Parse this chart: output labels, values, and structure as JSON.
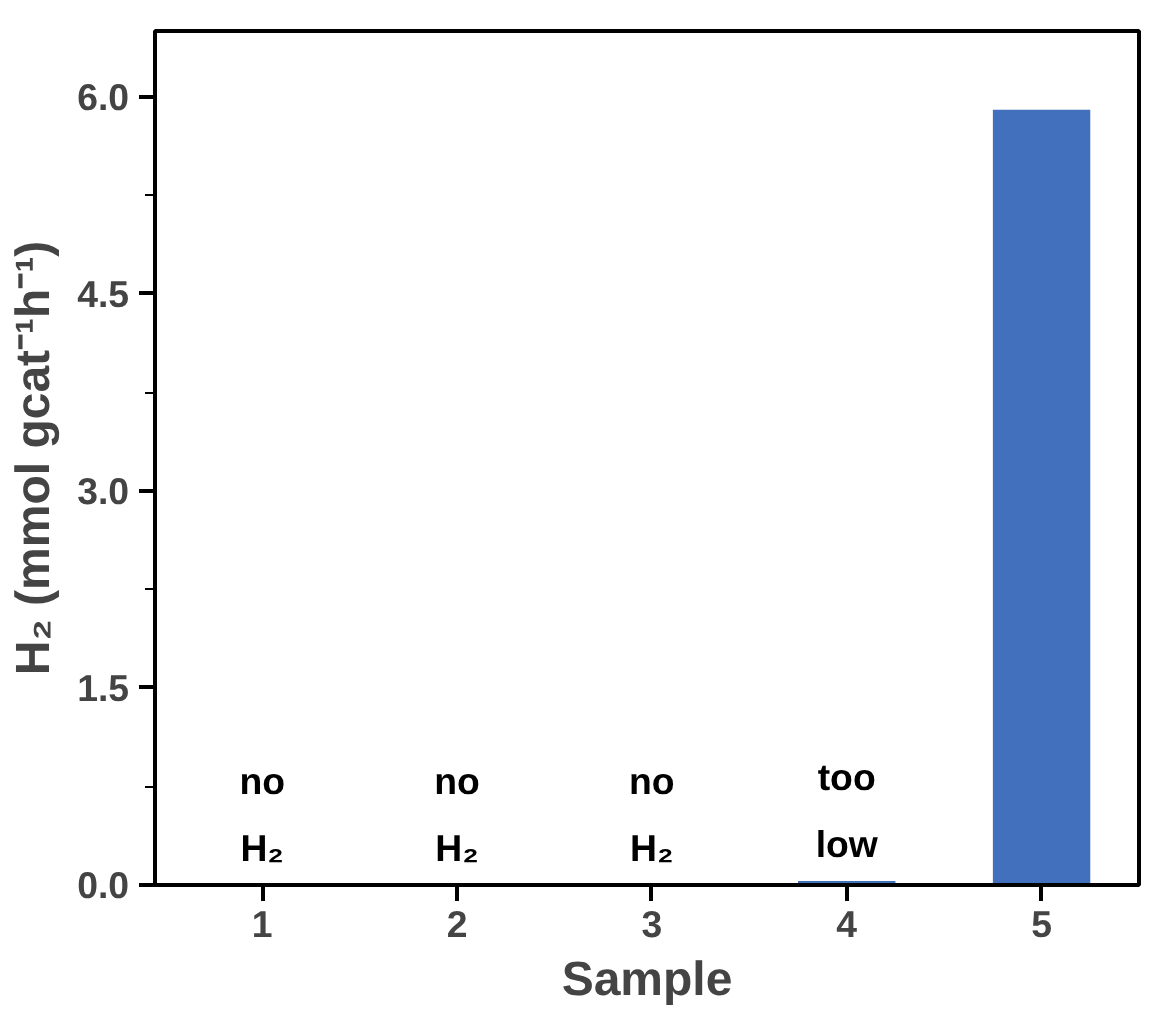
{
  "chart_data": {
    "type": "bar",
    "xlabel": "Sample",
    "ylabel": "H₂ (mmol gcat⁻¹h⁻¹)",
    "categories": [
      "1",
      "2",
      "3",
      "4",
      "5"
    ],
    "values": [
      0,
      0,
      0,
      0.03,
      5.9
    ],
    "color": "#4270bd",
    "ylim": [
      0,
      6.5
    ],
    "yticks": [
      {
        "value": 0,
        "label": "0.0"
      },
      {
        "value": 1.5,
        "label": "1.5"
      },
      {
        "value": 3,
        "label": "3.0"
      },
      {
        "value": 4.5,
        "label": "4.5"
      },
      {
        "value": 6,
        "label": "6.0"
      }
    ],
    "grid": false,
    "annotations": [
      {
        "text": "no\nH₂",
        "x": "1",
        "y": 0
      },
      {
        "text": "no\nH₂",
        "x": "2",
        "y": 0
      },
      {
        "text": "no\nH₂",
        "x": "3",
        "y": 0
      },
      {
        "text": "too\nlow",
        "x": "4",
        "y": 0.03
      }
    ]
  }
}
